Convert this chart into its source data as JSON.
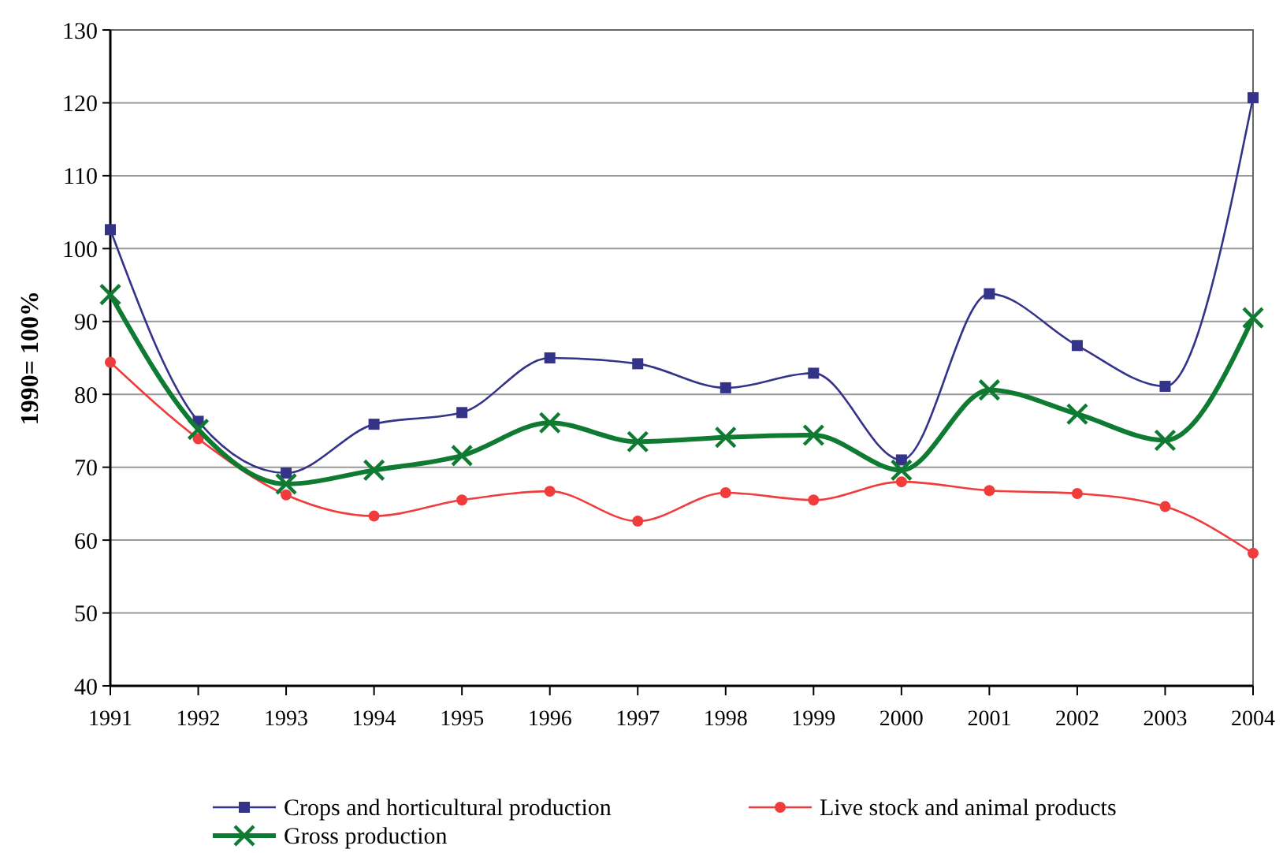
{
  "chart_data": {
    "type": "line",
    "ylabel": "1990= 100%",
    "categories": [
      "1991",
      "1992",
      "1993",
      "1994",
      "1995",
      "1996",
      "1997",
      "1998",
      "1999",
      "2000",
      "2001",
      "2002",
      "2003",
      "2004"
    ],
    "series": [
      {
        "name": "Crops and horticultural production",
        "color": "#33338a",
        "marker": "square",
        "values": [
          102.6,
          76.3,
          69.2,
          75.9,
          77.5,
          85,
          84.2,
          80.9,
          82.9,
          71,
          93.8,
          86.7,
          81.1,
          120.7
        ]
      },
      {
        "name": "Live stock and animal products",
        "color": "#f03c3c",
        "marker": "circle",
        "values": [
          84.4,
          73.9,
          66.2,
          63.3,
          65.5,
          66.7,
          62.6,
          66.5,
          65.5,
          68,
          66.8,
          66.4,
          64.6,
          58.2
        ]
      },
      {
        "name": "Gross production",
        "color": "#0f7a32",
        "marker": "cross",
        "values": [
          93.7,
          75.2,
          67.7,
          69.6,
          71.6,
          76.1,
          73.5,
          74.1,
          74.4,
          69.6,
          80.6,
          77.3,
          73.7,
          90.5
        ]
      }
    ],
    "ylim": [
      40,
      130
    ],
    "yticks": [
      40,
      50,
      60,
      70,
      80,
      90,
      100,
      110,
      120,
      130
    ],
    "grid": "y",
    "legend": "bottom"
  }
}
